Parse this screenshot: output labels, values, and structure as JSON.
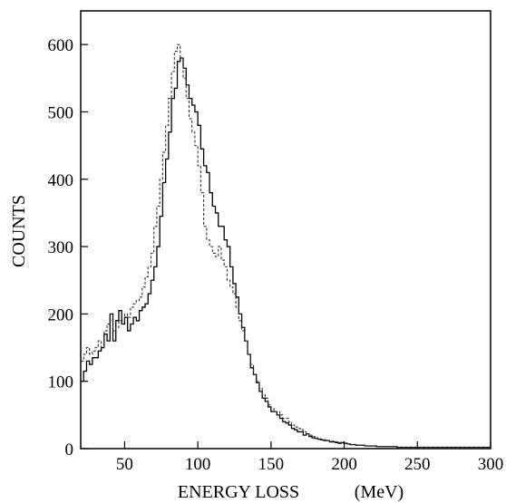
{
  "chart_data": {
    "type": "line",
    "xlabel": "ENERGY LOSS",
    "xunit": "(MeV)",
    "ylabel": "COUNTS",
    "xlim": [
      20,
      300
    ],
    "ylim": [
      0,
      650
    ],
    "x_ticks": [
      50,
      100,
      150,
      200,
      250,
      300
    ],
    "x_tick_labels": [
      "50",
      "100",
      "150",
      "200",
      "250",
      "300"
    ],
    "y_ticks": [
      0,
      100,
      200,
      300,
      400,
      500,
      600
    ],
    "y_tick_labels": [
      "0",
      "100",
      "200",
      "300",
      "400",
      "500",
      "600"
    ],
    "grid": false,
    "bin_width": 2,
    "x_bins_start": 20,
    "series": [
      {
        "style": "solid",
        "color": "#000000",
        "values": [
          100,
          115,
          130,
          125,
          135,
          135,
          145,
          150,
          170,
          160,
          200,
          160,
          190,
          205,
          185,
          195,
          175,
          185,
          195,
          190,
          205,
          210,
          215,
          230,
          250,
          270,
          300,
          345,
          395,
          430,
          470,
          520,
          535,
          575,
          580,
          565,
          540,
          520,
          510,
          500,
          480,
          445,
          420,
          410,
          380,
          360,
          350,
          330,
          330,
          310,
          300,
          270,
          245,
          225,
          200,
          180,
          160,
          140,
          120,
          110,
          98,
          85,
          75,
          70,
          62,
          55,
          55,
          50,
          45,
          40,
          38,
          35,
          30,
          28,
          25,
          25,
          20,
          22,
          18,
          16,
          15,
          14,
          13,
          12,
          12,
          10,
          10,
          9,
          8,
          9,
          8,
          7,
          6,
          6,
          5,
          5,
          5,
          4,
          4,
          4,
          4,
          3,
          3,
          3,
          3,
          3,
          3,
          3,
          2,
          2,
          2,
          2,
          2,
          2,
          2,
          2,
          2,
          2,
          2,
          2,
          2,
          2,
          2,
          2,
          2,
          2,
          2,
          2,
          2,
          2,
          2,
          2,
          2,
          2,
          2,
          2,
          2,
          2,
          2,
          2
        ]
      },
      {
        "style": "dashed",
        "color": "#333333",
        "values": [
          130,
          140,
          150,
          140,
          145,
          150,
          160,
          150,
          175,
          185,
          190,
          175,
          180,
          190,
          190,
          200,
          195,
          210,
          215,
          220,
          225,
          240,
          255,
          270,
          290,
          330,
          360,
          400,
          440,
          480,
          520,
          560,
          590,
          600,
          580,
          550,
          520,
          490,
          470,
          450,
          420,
          380,
          330,
          310,
          300,
          290,
          285,
          300,
          280,
          270,
          250,
          240,
          230,
          210,
          190,
          175,
          160,
          140,
          125,
          110,
          100,
          90,
          80,
          75,
          65,
          60,
          55,
          55,
          50,
          45,
          45,
          40,
          35,
          32,
          30,
          28,
          25,
          22,
          20,
          18,
          16,
          15,
          14,
          13,
          12,
          11,
          11,
          10,
          9,
          8,
          8,
          7,
          6,
          6,
          5,
          5,
          5,
          4,
          4,
          4,
          4,
          3,
          3,
          3,
          3,
          3,
          3,
          3,
          2,
          2,
          2,
          2,
          2,
          2,
          2,
          2,
          2,
          2,
          2,
          2,
          2,
          2,
          2,
          2,
          2,
          2,
          2,
          2,
          2,
          2,
          2,
          2,
          2,
          2,
          2,
          2,
          2,
          2,
          2,
          2
        ]
      }
    ]
  }
}
